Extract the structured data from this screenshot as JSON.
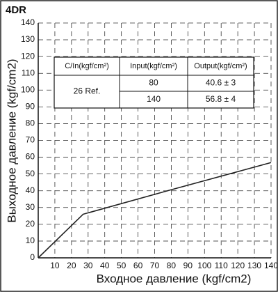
{
  "chart_data": {
    "type": "line",
    "title": "4DR",
    "x_label": "Входное давление (kgf/cm2)",
    "y_label": "Выходное давление (kgf/cm2)",
    "x": [
      0,
      27,
      80,
      140
    ],
    "values": [
      0,
      26,
      40.6,
      56.8
    ],
    "color": "#222222",
    "xlim": [
      0,
      140
    ],
    "ylim": [
      0,
      140
    ],
    "xticks": [
      10,
      20,
      30,
      40,
      50,
      60,
      70,
      80,
      90,
      100,
      110,
      120,
      130,
      140
    ],
    "yticks": [
      0,
      10,
      20,
      30,
      40,
      50,
      60,
      70,
      80,
      90,
      100,
      110,
      120,
      130,
      140
    ],
    "grid": true,
    "table": {
      "header": [
        "C/In(kgf/cm²)",
        "Input(kgf/cm²)",
        "Output(kgf/cm²)"
      ],
      "row_label": "26 Ref.",
      "rows": [
        [
          "80",
          "40.6 ± 3"
        ],
        [
          "140",
          "56.8 ± 4"
        ]
      ]
    }
  }
}
